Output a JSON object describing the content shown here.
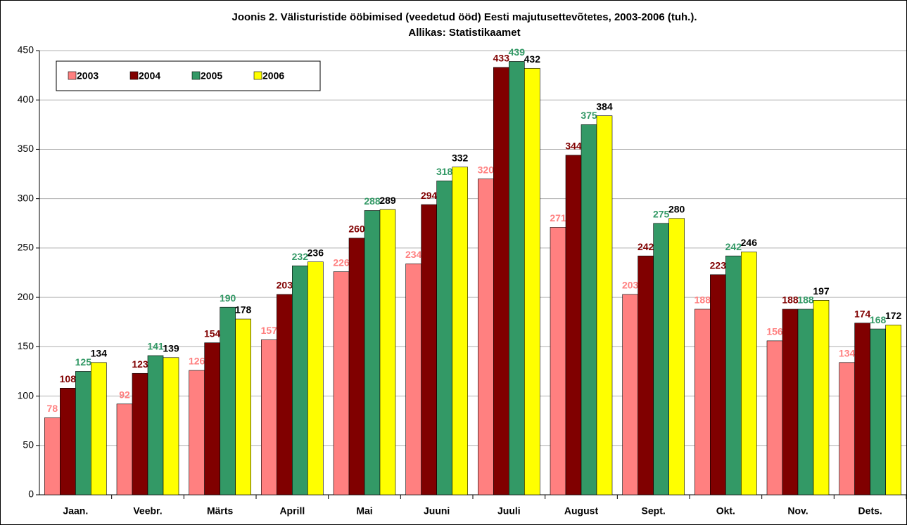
{
  "chart_data": {
    "type": "bar",
    "title": "Joonis 2. Välisturistide ööbimised (veedetud ööd) Eesti majutusettevõtetes, 2003-2006 (tuh.).",
    "subtitle": "Allikas: Statistikaamet",
    "categories": [
      "Jaan.",
      "Veebr.",
      "Märts",
      "Aprill",
      "Mai",
      "Juuni",
      "Juuli",
      "August",
      "Sept.",
      "Okt.",
      "Nov.",
      "Dets."
    ],
    "series": [
      {
        "name": "2003",
        "color": "#ff8080",
        "label_color": "#ff8080",
        "values": [
          78,
          92,
          126,
          157,
          226,
          234,
          320,
          271,
          203,
          188,
          156,
          134
        ]
      },
      {
        "name": "2004",
        "color": "#800000",
        "label_color": "#800000",
        "values": [
          108,
          123,
          154,
          203,
          260,
          294,
          433,
          344,
          242,
          223,
          188,
          174
        ]
      },
      {
        "name": "2005",
        "color": "#339966",
        "label_color": "#339966",
        "values": [
          125,
          141,
          190,
          232,
          288,
          318,
          439,
          375,
          275,
          242,
          188,
          168
        ]
      },
      {
        "name": "2006",
        "color": "#ffff00",
        "label_color": "#000000",
        "values": [
          134,
          139,
          178,
          236,
          289,
          332,
          432,
          384,
          280,
          246,
          197,
          172
        ]
      }
    ],
    "ylim": [
      0,
      450
    ],
    "yticks": [
      0,
      50,
      100,
      150,
      200,
      250,
      300,
      350,
      400,
      450
    ],
    "grid": true,
    "legend": "top-left"
  }
}
